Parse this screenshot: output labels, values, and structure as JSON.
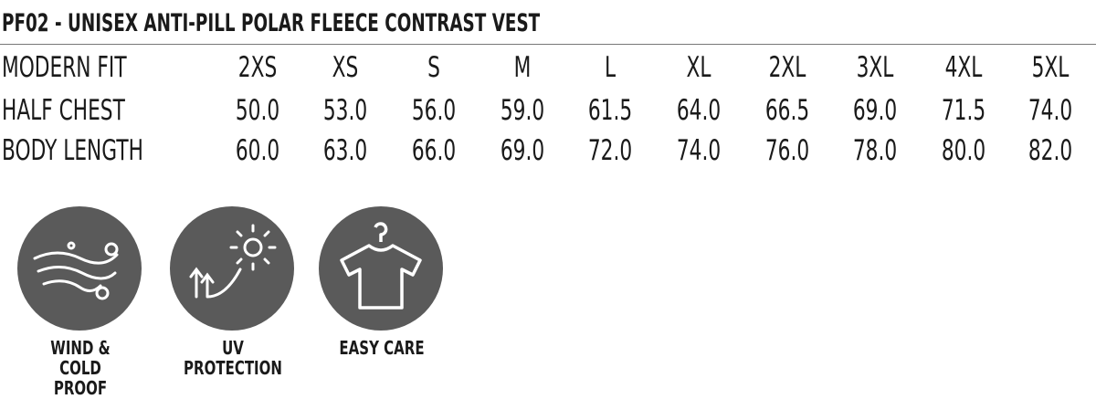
{
  "header": {
    "title": "PF02 - UNISEX ANTI-PILL POLAR FLEECE CONTRAST VEST"
  },
  "table": {
    "rows": [
      [
        "MODERN FIT",
        "2XS",
        "XS",
        "S",
        "M",
        "L",
        "XL",
        "2XL",
        "3XL",
        "4XL",
        "5XL"
      ],
      [
        "HALF CHEST",
        "50.0",
        "53.0",
        "56.0",
        "59.0",
        "61.5",
        "64.0",
        "66.5",
        "69.0",
        "71.5",
        "74.0"
      ],
      [
        "BODY LENGTH",
        "60.0",
        "63.0",
        "66.0",
        "69.0",
        "72.0",
        "74.0",
        "76.0",
        "78.0",
        "80.0",
        "82.0"
      ]
    ]
  },
  "features": [
    {
      "label": "WIND & COLD PROOF"
    },
    {
      "label": "UV PROTECTION"
    },
    {
      "label": "EASY CARE"
    }
  ]
}
